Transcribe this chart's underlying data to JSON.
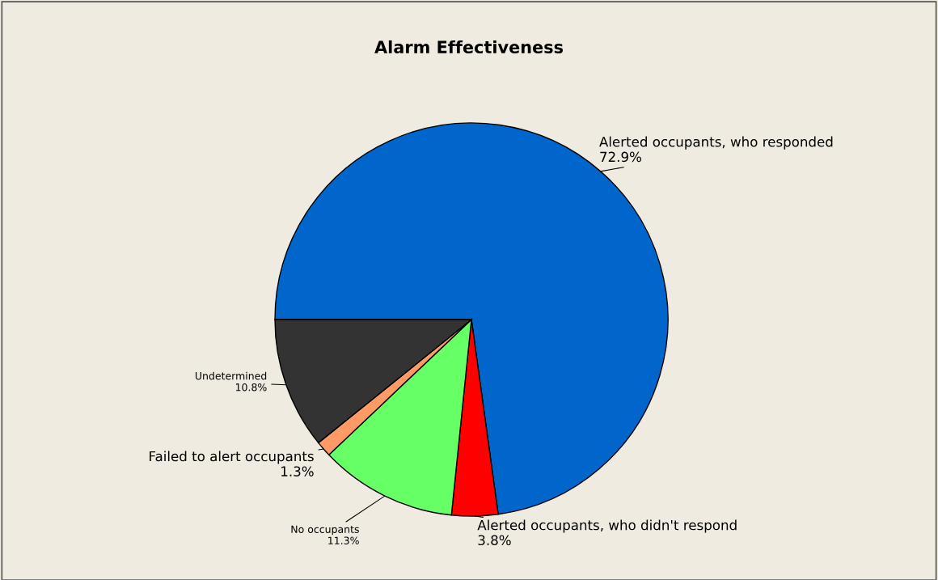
{
  "chart_data": {
    "type": "pie",
    "title": "Alarm Effectiveness",
    "categories": [
      "Alerted occupants, who responded",
      "Alerted occupants, who didn't respond",
      "No occupants",
      "Failed to alert occupants",
      "Undetermined"
    ],
    "values": [
      72.9,
      3.8,
      11.3,
      1.3,
      10.8
    ],
    "value_labels": [
      "72.9%",
      "3.8%",
      "11.3%",
      "1.3%",
      "10.8%"
    ],
    "colors": [
      "#0066cc",
      "#ff0000",
      "#66ff66",
      "#ff9966",
      "#333333"
    ]
  }
}
